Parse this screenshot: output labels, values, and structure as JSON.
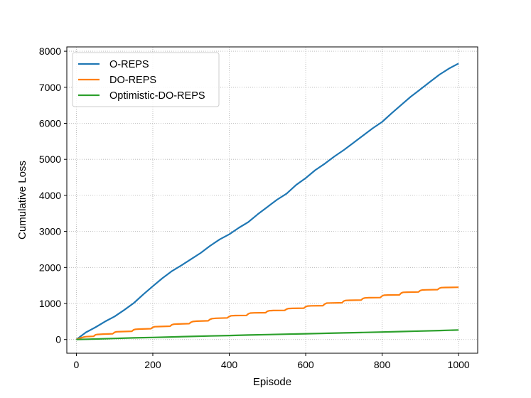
{
  "chart_data": {
    "type": "line",
    "title": "",
    "xlabel": "Episode",
    "ylabel": "Cumulative Loss",
    "xlim": [
      -25,
      1050
    ],
    "ylim": [
      -380,
      8120
    ],
    "xticks": [
      0,
      200,
      400,
      600,
      800,
      1000
    ],
    "yticks": [
      0,
      1000,
      2000,
      3000,
      4000,
      5000,
      6000,
      7000,
      8000
    ],
    "grid": true,
    "legend_position": "upper-left",
    "series": [
      {
        "name": "O-REPS",
        "color": "#1f77b4",
        "x": [
          0,
          25,
          50,
          75,
          100,
          125,
          150,
          175,
          200,
          225,
          250,
          275,
          300,
          325,
          350,
          375,
          400,
          425,
          450,
          475,
          500,
          525,
          550,
          575,
          600,
          625,
          650,
          675,
          700,
          725,
          750,
          775,
          800,
          825,
          850,
          875,
          900,
          925,
          950,
          975,
          1000
        ],
        "values": [
          0,
          200,
          340,
          500,
          640,
          820,
          1010,
          1250,
          1480,
          1700,
          1900,
          2060,
          2230,
          2400,
          2600,
          2780,
          2920,
          3100,
          3260,
          3480,
          3680,
          3880,
          4050,
          4290,
          4480,
          4700,
          4880,
          5080,
          5260,
          5460,
          5660,
          5860,
          6040,
          6280,
          6510,
          6740,
          6940,
          7150,
          7350,
          7520,
          7660
        ]
      },
      {
        "name": "DO-REPS",
        "color": "#ff7f0e",
        "x": [
          0,
          10,
          20,
          25,
          45,
          50,
          55,
          70,
          95,
          100,
          105,
          115,
          145,
          150,
          155,
          165,
          195,
          200,
          205,
          215,
          245,
          250,
          255,
          265,
          295,
          300,
          305,
          315,
          345,
          350,
          355,
          365,
          395,
          400,
          405,
          415,
          445,
          450,
          455,
          465,
          495,
          500,
          505,
          515,
          545,
          550,
          555,
          565,
          595,
          600,
          605,
          615,
          645,
          650,
          655,
          665,
          695,
          700,
          705,
          715,
          745,
          750,
          755,
          765,
          795,
          800,
          805,
          815,
          845,
          850,
          855,
          865,
          895,
          900,
          905,
          915,
          945,
          950,
          955,
          965,
          1000
        ],
        "values": [
          0,
          40,
          70,
          80,
          90,
          130,
          140,
          150,
          160,
          200,
          215,
          220,
          230,
          270,
          285,
          290,
          300,
          340,
          355,
          360,
          370,
          410,
          425,
          430,
          440,
          480,
          500,
          510,
          520,
          560,
          580,
          590,
          600,
          640,
          660,
          665,
          670,
          715,
          735,
          740,
          745,
          785,
          800,
          805,
          810,
          845,
          860,
          865,
          870,
          910,
          930,
          935,
          940,
          985,
          1010,
          1015,
          1020,
          1070,
          1085,
          1090,
          1095,
          1140,
          1155,
          1160,
          1165,
          1210,
          1230,
          1235,
          1240,
          1290,
          1310,
          1315,
          1320,
          1360,
          1375,
          1380,
          1385,
          1425,
          1440,
          1445,
          1450
        ]
      },
      {
        "name": "Optimistic-DO-REPS",
        "color": "#2ca02c",
        "x": [
          0,
          50,
          100,
          150,
          200,
          250,
          300,
          350,
          400,
          450,
          500,
          550,
          600,
          650,
          700,
          750,
          800,
          850,
          900,
          950,
          1000
        ],
        "values": [
          0,
          15,
          30,
          45,
          58,
          72,
          86,
          100,
          112,
          124,
          136,
          148,
          160,
          172,
          184,
          196,
          208,
          222,
          236,
          250,
          265
        ]
      }
    ]
  }
}
